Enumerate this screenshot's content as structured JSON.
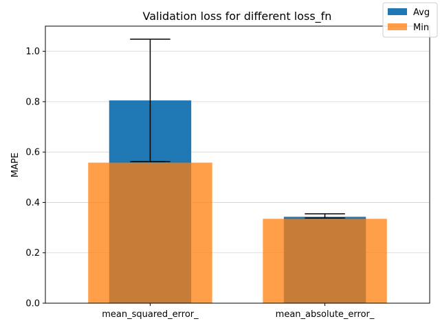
{
  "chart_data": {
    "type": "bar",
    "title": "Validation loss for different loss_fn",
    "xlabel": "",
    "ylabel": "MAPE",
    "categories": [
      "mean_squared_error_",
      "mean_absolute_error_"
    ],
    "series": [
      {
        "name": "Avg",
        "values": [
          0.805,
          0.343
        ],
        "error_low": [
          0.562,
          0.338
        ],
        "error_high": [
          1.048,
          0.355
        ],
        "color": "#1f77b4"
      },
      {
        "name": "Min",
        "values": [
          0.558,
          0.335
        ],
        "color": "#ff7f0e",
        "opacity": 0.75
      }
    ],
    "ylim": [
      0,
      1.1
    ],
    "yticks": [
      "0.0",
      "0.2",
      "0.4",
      "0.6",
      "0.8",
      "1.0"
    ],
    "grid": "horizontal",
    "legend_position": "top-right"
  }
}
